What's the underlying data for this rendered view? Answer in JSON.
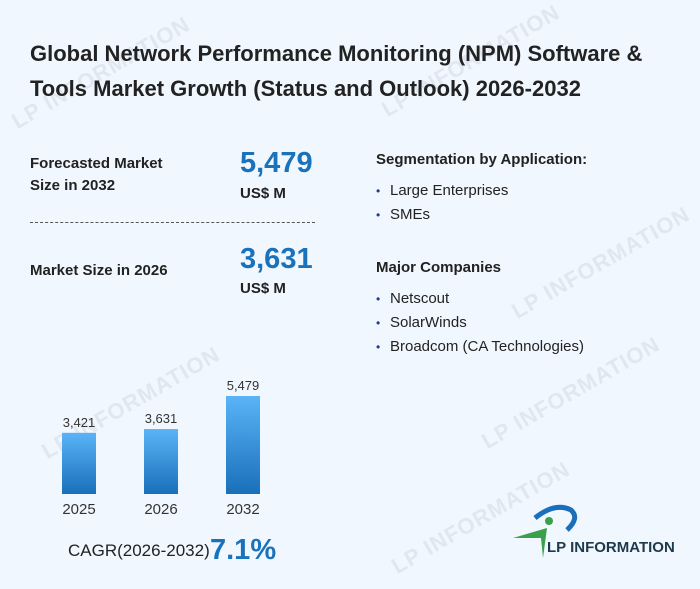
{
  "title": "Global Network Performance Monitoring (NPM) Software & Tools Market Growth (Status and Outlook) 2026-2032",
  "forecast": {
    "label": "Forecasted Market Size in 2032",
    "value": "5,479",
    "unit": "US$ M"
  },
  "current": {
    "label": "Market Size in 2026",
    "value": "3,631",
    "unit": "US$ M"
  },
  "segmentation": {
    "heading": "Segmentation by Application:",
    "items": [
      "Large Enterprises",
      "SMEs"
    ]
  },
  "companies": {
    "heading": "Major Companies",
    "items": [
      "Netscout",
      "SolarWinds",
      "Broadcom (CA Technologies)"
    ]
  },
  "bullet": "•",
  "cagr": {
    "label": "CAGR(2026-2032)",
    "value": "7.1%"
  },
  "logo_text": "LP INFORMATION",
  "watermark": "LP INFORMATION",
  "chart_data": {
    "type": "bar",
    "categories": [
      "2025",
      "2026",
      "2032"
    ],
    "values": [
      3421,
      3631,
      5479
    ],
    "value_labels": [
      "3,421",
      "3,631",
      "5,479"
    ],
    "ylim": [
      0,
      5479
    ],
    "title": "",
    "xlabel": "",
    "ylabel": "",
    "colors": {
      "top": "#5ab4f6",
      "bottom": "#1a6fba"
    }
  }
}
